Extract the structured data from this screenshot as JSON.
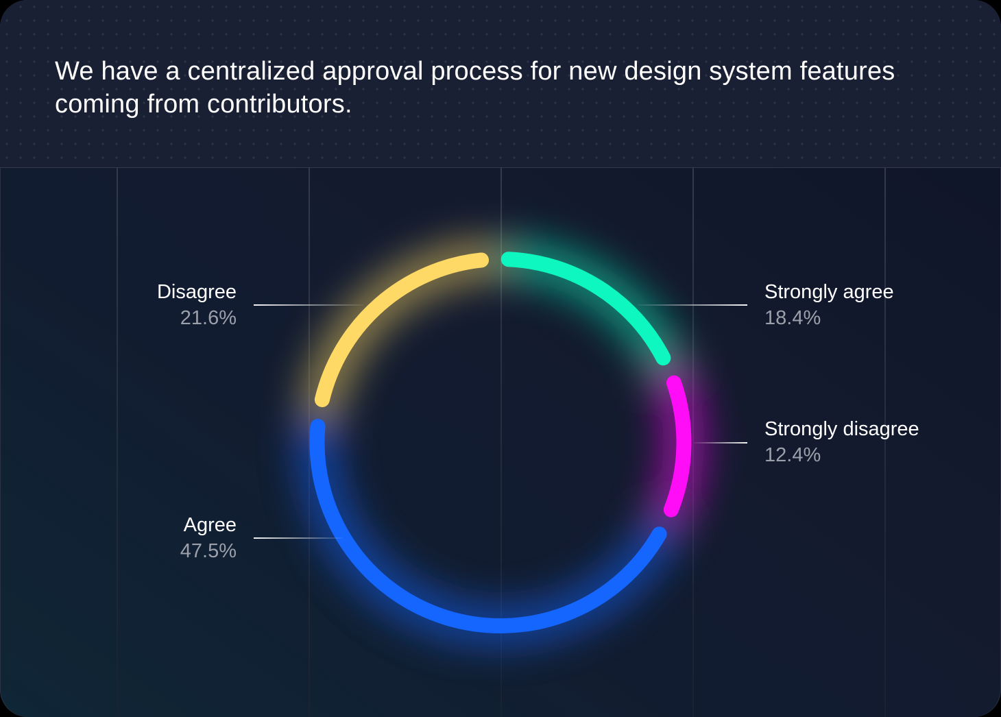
{
  "title": "We have a centralized approval process for new design system features coming from contributors.",
  "chart_data": {
    "type": "pie",
    "variant": "donut-ring",
    "title": "We have a centralized approval process for new design system features coming from contributors.",
    "categories": [
      "Strongly agree",
      "Strongly disagree",
      "Agree",
      "Disagree"
    ],
    "values": [
      18.4,
      12.4,
      47.5,
      21.6
    ],
    "unit": "%",
    "colors": [
      "#0ef7c0",
      "#ff0df7",
      "#1565ff",
      "#ffd966"
    ],
    "legend_position": "leader-line labels around ring",
    "grid": "vertical lines"
  },
  "labels": {
    "strongly_agree": {
      "name": "Strongly agree",
      "pct": "18.4%"
    },
    "strongly_disagree": {
      "name": "Strongly disagree",
      "pct": "12.4%"
    },
    "agree": {
      "name": "Agree",
      "pct": "47.5%"
    },
    "disagree": {
      "name": "Disagree",
      "pct": "21.6%"
    }
  },
  "colors": {
    "strongly_agree": "#0ef7c0",
    "strongly_disagree": "#ff0df7",
    "agree": "#1565ff",
    "disagree": "#ffd966",
    "background": "#131a2e",
    "header": "#1a2033"
  }
}
